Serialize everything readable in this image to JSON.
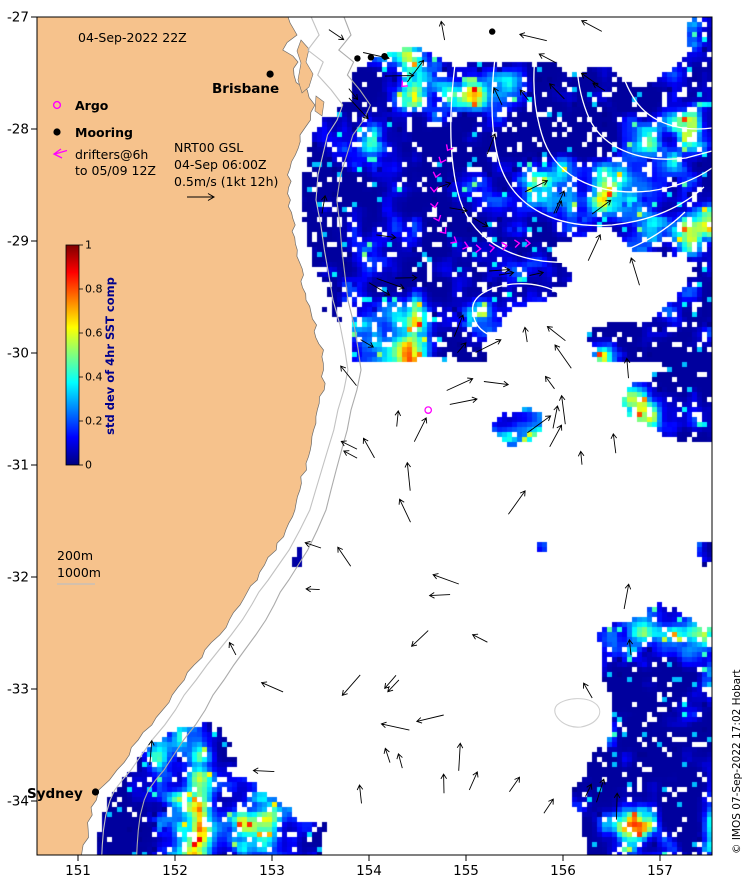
{
  "figure": {
    "timestamp": "04-Sep-2022 22Z",
    "credit": "© IMOS 07-Sep-2022 17:02 Hobart"
  },
  "legend": {
    "argo": "Argo",
    "mooring": "Mooring",
    "drifters_line1": "drifters@6h",
    "drifters_line2": "to 05/09 12Z"
  },
  "gsl": {
    "line1": "NRT00 GSL",
    "line2": "04-Sep 06:00Z",
    "line3": "0.5m/s (1kt 12h)"
  },
  "isobaths": {
    "i200": "200m",
    "i1000": "1000m"
  },
  "cities": [
    {
      "name": "Brisbane",
      "lon": 152.98,
      "lat": -27.51
    },
    {
      "name": "Sydney",
      "lon": 151.18,
      "lat": -33.92
    }
  ],
  "colorbar": {
    "label": "std dev of 4hr SST comp",
    "ticks": [
      "0",
      "0.2",
      "0.4",
      "0.6",
      "0.8",
      "1"
    ],
    "min": 0,
    "max": 1,
    "colormap": "jet"
  },
  "axes": {
    "x_ticks": [
      "151",
      "152",
      "153",
      "154",
      "155",
      "156",
      "157"
    ],
    "y_ticks": [
      "-27",
      "-28",
      "-29",
      "-30",
      "-31",
      "-32",
      "-33",
      "-34"
    ]
  },
  "chart_data": {
    "type": "heatmap",
    "variable": "std dev of 4hr SST comp",
    "value_range": [
      0,
      1
    ],
    "colormap": "jet",
    "x_range": [
      150.58,
      157.54
    ],
    "y_range": [
      -34.48,
      -27.0
    ],
    "x_ticks": [
      151,
      152,
      153,
      154,
      155,
      156,
      157
    ],
    "y_ticks": [
      -27,
      -28,
      -29,
      -30,
      -31,
      -32,
      -33,
      -34
    ],
    "markers": {
      "moorings": [
        [
          153.88,
          -27.37
        ],
        [
          154.02,
          -27.36
        ],
        [
          154.16,
          -27.35
        ],
        [
          155.27,
          -27.13
        ]
      ],
      "argo_floats": [
        [
          154.61,
          -30.51
        ]
      ],
      "drifter_track": [
        [
          154.81,
          -28.19
        ],
        [
          154.74,
          -28.3
        ],
        [
          154.69,
          -28.43
        ],
        [
          154.67,
          -28.56
        ],
        [
          154.68,
          -28.7
        ],
        [
          154.72,
          -28.82
        ],
        [
          154.79,
          -28.93
        ],
        [
          154.9,
          -29.01
        ],
        [
          155.02,
          -29.05
        ],
        [
          155.15,
          -29.07
        ],
        [
          155.29,
          -29.06
        ],
        [
          155.42,
          -29.04
        ],
        [
          155.55,
          -29.02
        ],
        [
          155.66,
          -29.02
        ]
      ],
      "drifter_marks": [
        [
          154.34,
          -27.62
        ]
      ]
    }
  }
}
